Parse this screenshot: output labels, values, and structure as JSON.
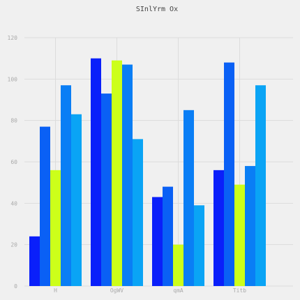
{
  "chart_data": {
    "type": "bar",
    "title": "SInlYrm Ox",
    "xlabel": "",
    "ylabel": "",
    "ylim": [
      0,
      120
    ],
    "yticks": [
      0,
      20,
      40,
      60,
      80,
      100,
      120
    ],
    "grid": true,
    "legend": "none",
    "categories": [
      "H",
      "OgWV",
      "qmA",
      "Titb"
    ],
    "series": [
      {
        "color": "#0a1ffa",
        "values": [
          24,
          110,
          43,
          56
        ]
      },
      {
        "color": "#0a60f5",
        "values": [
          77,
          93,
          48,
          108
        ]
      },
      {
        "color": "#ccff1a",
        "values": [
          56,
          109,
          20,
          49
        ]
      },
      {
        "color": "#0a7ef5",
        "values": [
          97,
          107,
          85,
          58
        ]
      },
      {
        "color": "#0aa4f5",
        "values": [
          83,
          71,
          39,
          97
        ]
      }
    ]
  }
}
